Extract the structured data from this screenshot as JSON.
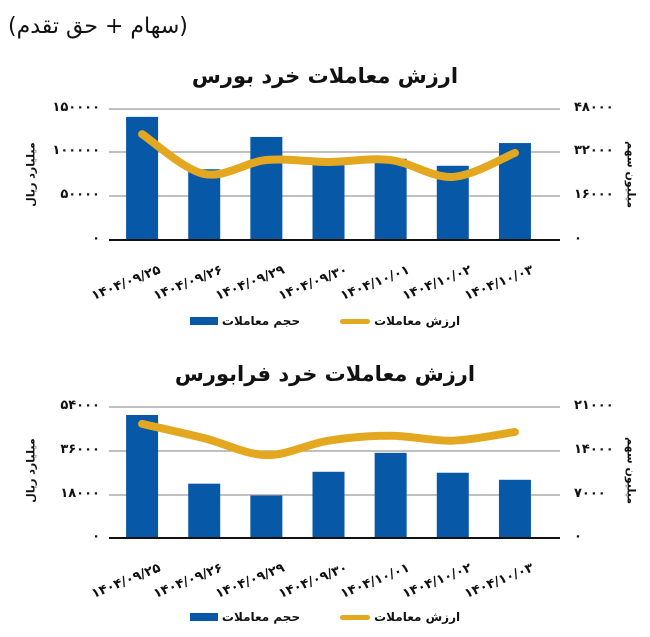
{
  "header": {
    "title": "(سهام + حق تقدم)"
  },
  "colors": {
    "bar": "#0759a8",
    "line": "#e3a820",
    "grid": "#9a9a9a",
    "axis": "#111111"
  },
  "legend": {
    "value_label": "ارزش معاملات",
    "volume_label": "حجم معاملات"
  },
  "chart_data": [
    {
      "type": "bar+line",
      "title": "ارزش معاملات خرد بورس",
      "categories": [
        "۱۴۰۴/۰۹/۲۵",
        "۱۴۰۴/۰۹/۲۶",
        "۱۴۰۴/۰۹/۲۹",
        "۱۴۰۴/۰۹/۳۰",
        "۱۴۰۴/۱۰/۰۱",
        "۱۴۰۴/۱۰/۰۲",
        "۱۴۰۴/۱۰/۰۳"
      ],
      "ylabel": "میلیارد ریال",
      "y2label": "میلیون سهم",
      "ylim": [
        0,
        150000
      ],
      "y2lim": [
        0,
        48000
      ],
      "yticks": [
        "۰",
        "۵۰۰۰۰",
        "۱۰۰۰۰۰",
        "۱۵۰۰۰۰"
      ],
      "y2ticks": [
        "۰",
        "۱۶۰۰۰",
        "۳۲۰۰۰",
        "۴۸۰۰۰"
      ],
      "grid": true,
      "legend_position": "bottom",
      "series": [
        {
          "name": "حجم معاملات",
          "type": "bar",
          "axis": "left",
          "values": [
            141000,
            81000,
            118000,
            87000,
            93000,
            85000,
            111000
          ]
        },
        {
          "name": "ارزش معاملات",
          "type": "line",
          "axis": "right",
          "values": [
            38800,
            24200,
            29300,
            28600,
            29300,
            23100,
            31900
          ]
        }
      ]
    },
    {
      "type": "bar+line",
      "title": "ارزش معاملات خرد فرابورس",
      "categories": [
        "۱۴۰۴/۰۹/۲۵",
        "۱۴۰۴/۰۹/۲۶",
        "۱۴۰۴/۰۹/۲۹",
        "۱۴۰۴/۰۹/۳۰",
        "۱۴۰۴/۱۰/۰۱",
        "۱۴۰۴/۱۰/۰۲",
        "۱۴۰۴/۱۰/۰۳"
      ],
      "ylabel": "میلیارد ریال",
      "y2label": "میلیون سهم",
      "ylim": [
        0,
        54000
      ],
      "y2lim": [
        0,
        21000
      ],
      "yticks": [
        "۰",
        "۱۸۰۰۰",
        "۳۶۰۰۰",
        "۵۴۰۰۰"
      ],
      "y2ticks": [
        "۰",
        "۷۰۰۰",
        "۱۴۰۰۰",
        "۲۱۰۰۰"
      ],
      "grid": true,
      "legend_position": "bottom",
      "series": [
        {
          "name": "حجم معاملات",
          "type": "bar",
          "axis": "left",
          "values": [
            50700,
            22400,
            17500,
            27300,
            35100,
            26900,
            24000
          ]
        },
        {
          "name": "ارزش معاملات",
          "type": "line",
          "axis": "right",
          "values": [
            18300,
            16000,
            13300,
            15600,
            16400,
            15600,
            17000
          ]
        }
      ]
    }
  ]
}
